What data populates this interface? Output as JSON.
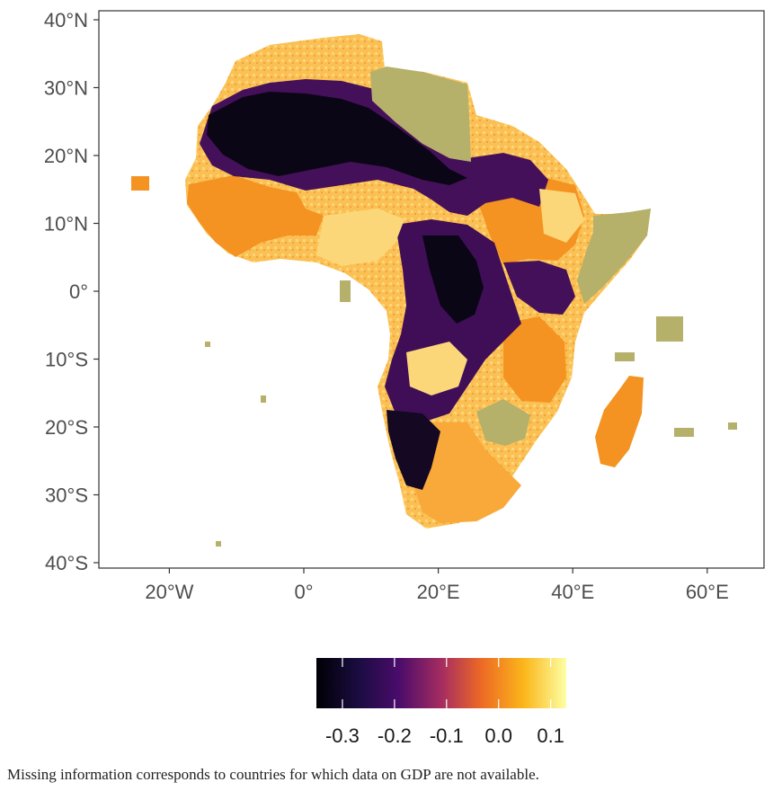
{
  "map": {
    "x_ticks": [
      {
        "value": -20,
        "label": "20°W"
      },
      {
        "value": 0,
        "label": "0°"
      },
      {
        "value": 20,
        "label": "20°E"
      },
      {
        "value": 40,
        "label": "40°E"
      },
      {
        "value": 60,
        "label": "60°E"
      }
    ],
    "y_ticks": [
      {
        "value": 40,
        "label": "40°N"
      },
      {
        "value": 30,
        "label": "30°N"
      },
      {
        "value": 20,
        "label": "20°N"
      },
      {
        "value": 10,
        "label": "10°N"
      },
      {
        "value": 0,
        "label": "0°"
      },
      {
        "value": -10,
        "label": "10°S"
      },
      {
        "value": -20,
        "label": "20°S"
      },
      {
        "value": -30,
        "label": "30°S"
      },
      {
        "value": -40,
        "label": "40°S"
      }
    ],
    "lon_range": [
      -30,
      68
    ],
    "lat_range": [
      -41,
      41
    ],
    "missing_color": "#b5b06a",
    "colors": {
      "very_low": "#1a0b2e",
      "low": "#4a0f5e",
      "mid": "#c6433f",
      "high": "#f6a224",
      "very_high": "#fcd06a"
    },
    "regions": [
      {
        "name": "sahara-band",
        "value": -0.35,
        "lon": [
          -12,
          24
        ],
        "lat": [
          16,
          26
        ]
      },
      {
        "name": "libya",
        "value": null,
        "lon": [
          9,
          25
        ],
        "lat": [
          20,
          32
        ]
      },
      {
        "name": "horn",
        "value": null,
        "lon": [
          40,
          51
        ],
        "lat": [
          -1,
          12
        ]
      },
      {
        "name": "botswana",
        "value": null,
        "lon": [
          20,
          29
        ],
        "lat": [
          -26,
          -18
        ]
      }
    ]
  },
  "legend": {
    "ticks": [
      "-0.3",
      "-0.2",
      "-0.1",
      "0.0",
      "0.1"
    ],
    "range": [
      -0.35,
      0.13
    ],
    "tick_values": [
      -0.3,
      -0.2,
      -0.1,
      0.0,
      0.1
    ]
  },
  "caption": "Missing information corresponds to countries for which data on GDP are not available."
}
